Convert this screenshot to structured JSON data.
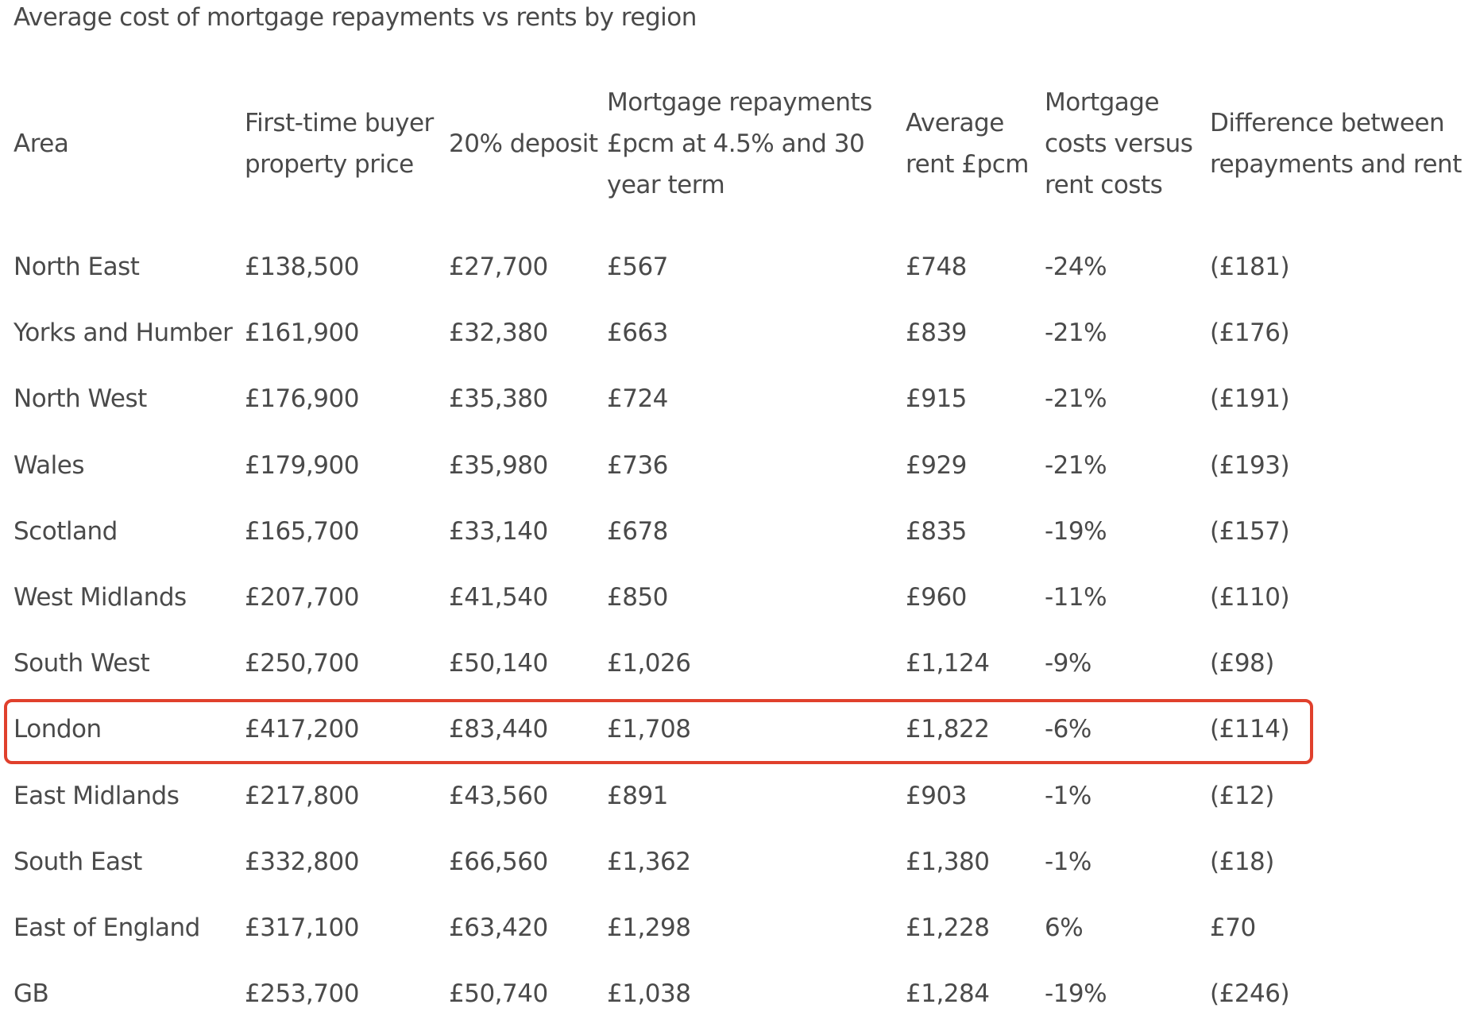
{
  "title": "Average cost of mortgage repayments vs rents by region",
  "table": {
    "headers": [
      "Area",
      "First-time buyer property price",
      "20% deposit",
      "Mortgage repayments £pcm at 4.5% and 30 year term",
      "Average rent £pcm",
      "Mortgage costs versus rent costs",
      "Difference between repayments and rent"
    ],
    "rows": [
      [
        "North East",
        "£138,500",
        "£27,700",
        "£567",
        "£748",
        "-24%",
        "(£181)"
      ],
      [
        "Yorks and Humber",
        "£161,900",
        "£32,380",
        "£663",
        "£839",
        "-21%",
        "(£176)"
      ],
      [
        "North West",
        "£176,900",
        "£35,380",
        "£724",
        "£915",
        "-21%",
        "(£191)"
      ],
      [
        "Wales",
        "£179,900",
        "£35,980",
        "£736",
        "£929",
        "-21%",
        "(£193)"
      ],
      [
        "Scotland",
        "£165,700",
        "£33,140",
        "£678",
        "£835",
        "-19%",
        "(£157)"
      ],
      [
        "West Midlands",
        "£207,700",
        "£41,540",
        "£850",
        "£960",
        "-11%",
        "(£110)"
      ],
      [
        "South West",
        "£250,700",
        "£50,140",
        "£1,026",
        "£1,124",
        "-9%",
        "(£98)"
      ],
      [
        "London",
        "£417,200",
        "£83,440",
        "£1,708",
        "£1,822",
        "-6%",
        "(£114)"
      ],
      [
        "East Midlands",
        "£217,800",
        "£43,560",
        "£891",
        "£903",
        "-1%",
        "(£12)"
      ],
      [
        "South East",
        "£332,800",
        "£66,560",
        "£1,362",
        "£1,380",
        "-1%",
        "(£18)"
      ],
      [
        "East of England",
        "£317,100",
        "£63,420",
        "£1,298",
        "£1,228",
        "6%",
        "£70"
      ],
      [
        "GB",
        "£253,700",
        "£50,740",
        "£1,038",
        "£1,284",
        "-19%",
        "(£246)"
      ]
    ]
  }
}
